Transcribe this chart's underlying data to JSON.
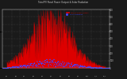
{
  "title": "Total PV Panel Power Output & Solar Radiation",
  "bg_color": "#1a1a1a",
  "plot_bg": "#1a1a1a",
  "red_color": "#dd0000",
  "blue_color": "#4444ff",
  "ylim": [
    0,
    800
  ],
  "n_points": 365,
  "grid_color": "#555555",
  "tick_color": "#cccccc",
  "title_color": "#cccccc",
  "legend_red_label": "Total PV Power Output",
  "legend_blue_label": "Solar Radiation",
  "yticks": [
    0,
    100,
    200,
    300,
    400,
    500,
    600,
    700,
    800
  ],
  "month_centers": [
    15,
    46,
    75,
    106,
    136,
    167,
    197,
    228,
    259,
    289,
    320,
    350
  ],
  "month_labels": [
    "1/1",
    "2/1",
    "3/1",
    "4/1",
    "5/1",
    "6/1",
    "7/1",
    "8/1",
    "9/1",
    "10/1",
    "11/1",
    "12/1"
  ]
}
